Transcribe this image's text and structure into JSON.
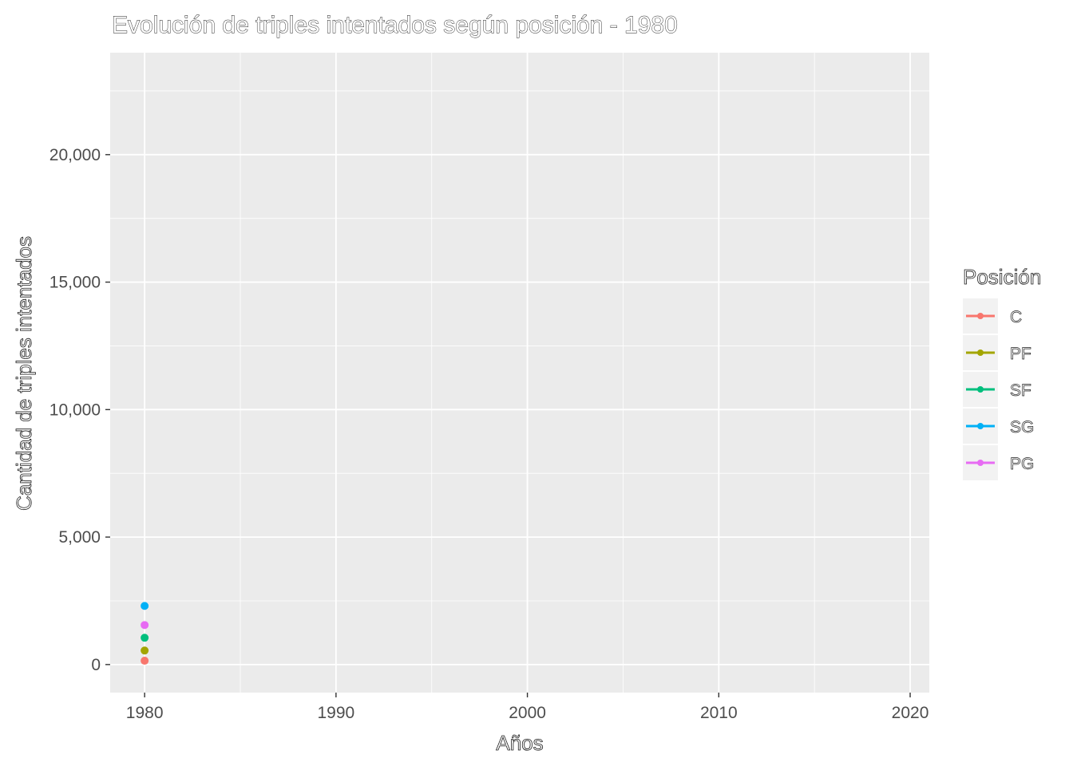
{
  "chart_data": {
    "type": "line",
    "title": "Evolución de triples intentados según posición - 1980",
    "xlabel": "Años",
    "ylabel": "Cantidad de triples intentados",
    "xlim": [
      1978.2,
      2021
    ],
    "ylim": [
      -1100,
      24000
    ],
    "x_ticks": [
      1980,
      1990,
      2000,
      2010,
      2020
    ],
    "x_tick_labels": [
      "1980",
      "1990",
      "2000",
      "2010",
      "2020"
    ],
    "y_ticks": [
      0,
      5000,
      10000,
      15000,
      20000
    ],
    "y_tick_labels": [
      "0",
      "5,000",
      "10,000",
      "15,000",
      "20,000"
    ],
    "grid": true,
    "legend_title": "Posición",
    "legend_position": "right",
    "series": [
      {
        "name": "C",
        "color": "#F8766D",
        "x": [
          1980
        ],
        "values": [
          150
        ]
      },
      {
        "name": "PF",
        "color": "#A3A500",
        "x": [
          1980
        ],
        "values": [
          550
        ]
      },
      {
        "name": "SF",
        "color": "#00BF7D",
        "x": [
          1980
        ],
        "values": [
          1050
        ]
      },
      {
        "name": "SG",
        "color": "#00B0F6",
        "x": [
          1980
        ],
        "values": [
          2300
        ]
      },
      {
        "name": "PG",
        "color": "#E76BF3",
        "x": [
          1980
        ],
        "values": [
          1550
        ]
      }
    ]
  }
}
